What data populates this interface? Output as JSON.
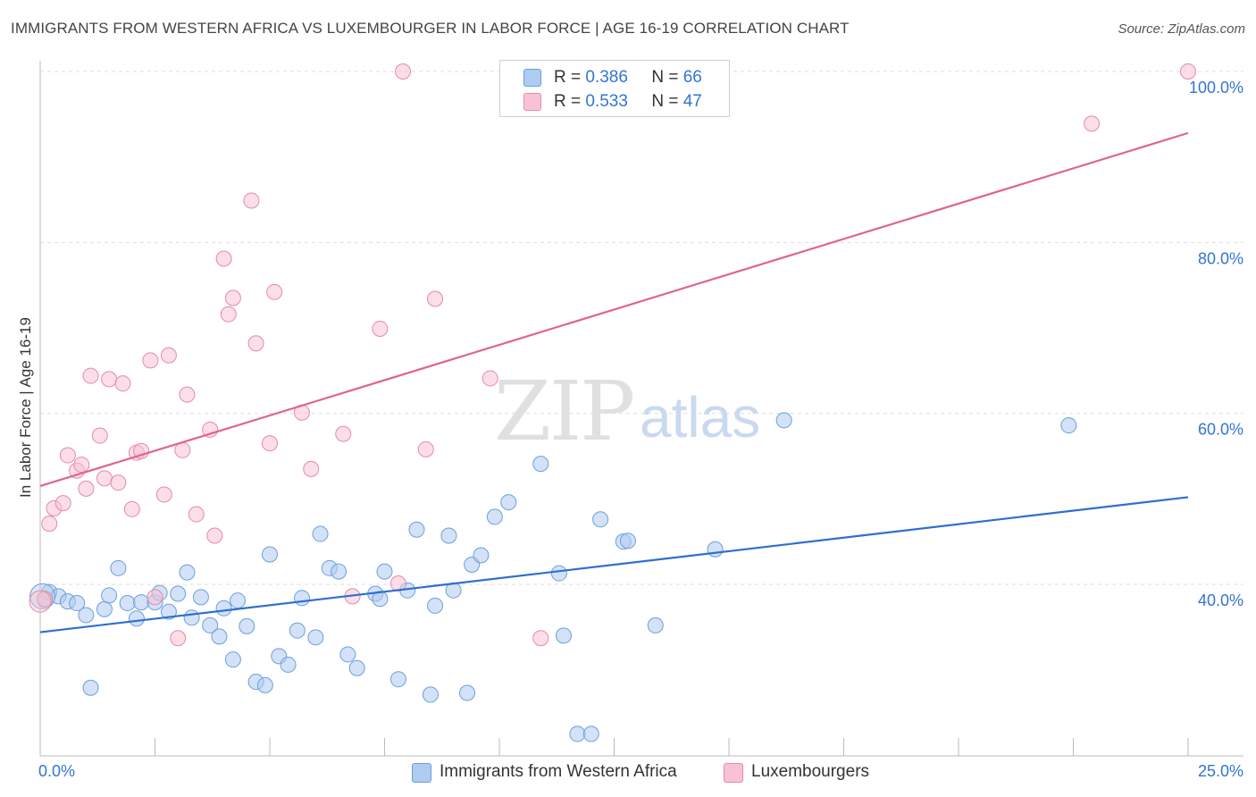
{
  "title": "IMMIGRANTS FROM WESTERN AFRICA VS LUXEMBOURGER IN LABOR FORCE | AGE 16-19 CORRELATION CHART",
  "source": "Source: ZipAtlas.com",
  "watermark": {
    "zip": "ZIP",
    "atlas": "atlas"
  },
  "legend": {
    "rows": [
      {
        "r_label": "R =",
        "r_value": "0.386",
        "n_label": "N =",
        "n_value": "66"
      },
      {
        "r_label": "R =",
        "r_value": "0.533",
        "n_label": "N =",
        "n_value": "47"
      }
    ]
  },
  "colors": {
    "blue_fill": "#aecbf0",
    "blue_stroke": "#6a9fdc",
    "blue_line": "#2e6fd0",
    "pink_fill": "#f7c3d3",
    "pink_stroke": "#e58aa8",
    "pink_line": "#e0648f",
    "axis_label": "#3474d1",
    "grid": "#dddddd"
  },
  "chart_data": {
    "type": "scatter",
    "title": "IMMIGRANTS FROM WESTERN AFRICA VS LUXEMBOURGER IN LABOR FORCE | AGE 16-19 CORRELATION CHART",
    "xlabel": "",
    "ylabel": "In Labor Force | Age 16-19",
    "xlim": [
      0,
      25
    ],
    "ylim": [
      20,
      101
    ],
    "x_tick_labels": [
      "0.0%",
      "25.0%"
    ],
    "y_ticks": [
      40,
      60,
      80,
      100
    ],
    "y_tick_labels": [
      "40.0%",
      "60.0%",
      "80.0%",
      "100.0%"
    ],
    "grid": true,
    "legend_position": "top-center",
    "series": [
      {
        "name": "Immigrants from Western Africa",
        "color": "#aecbf0",
        "trend": {
          "x": [
            0,
            25
          ],
          "y": [
            34.4,
            50.2
          ]
        },
        "points": [
          [
            0.1,
            38.2
          ],
          [
            0.2,
            39.1
          ],
          [
            0.4,
            38.6
          ],
          [
            0.6,
            38.0
          ],
          [
            0.8,
            37.8
          ],
          [
            1.0,
            36.4
          ],
          [
            1.1,
            27.9
          ],
          [
            1.4,
            37.1
          ],
          [
            1.5,
            38.7
          ],
          [
            1.7,
            41.9
          ],
          [
            1.9,
            37.8
          ],
          [
            2.1,
            36.0
          ],
          [
            2.2,
            37.9
          ],
          [
            2.5,
            37.9
          ],
          [
            2.6,
            39.0
          ],
          [
            2.8,
            36.8
          ],
          [
            3.0,
            38.9
          ],
          [
            3.2,
            41.4
          ],
          [
            3.3,
            36.1
          ],
          [
            3.5,
            38.5
          ],
          [
            3.7,
            35.2
          ],
          [
            3.9,
            33.9
          ],
          [
            4.0,
            37.2
          ],
          [
            4.2,
            31.2
          ],
          [
            4.3,
            38.1
          ],
          [
            4.5,
            35.1
          ],
          [
            4.7,
            28.6
          ],
          [
            4.9,
            28.2
          ],
          [
            5.0,
            43.5
          ],
          [
            5.2,
            31.6
          ],
          [
            5.4,
            30.6
          ],
          [
            5.6,
            34.6
          ],
          [
            5.7,
            38.4
          ],
          [
            6.0,
            33.8
          ],
          [
            6.1,
            45.9
          ],
          [
            6.3,
            41.9
          ],
          [
            6.5,
            41.5
          ],
          [
            6.7,
            31.8
          ],
          [
            6.9,
            30.2
          ],
          [
            7.3,
            38.9
          ],
          [
            7.4,
            38.3
          ],
          [
            7.5,
            41.5
          ],
          [
            7.8,
            28.9
          ],
          [
            8.0,
            39.3
          ],
          [
            8.2,
            46.4
          ],
          [
            8.5,
            27.1
          ],
          [
            8.6,
            37.5
          ],
          [
            8.9,
            45.7
          ],
          [
            9.0,
            39.3
          ],
          [
            9.3,
            27.3
          ],
          [
            9.4,
            42.3
          ],
          [
            9.6,
            43.4
          ],
          [
            9.9,
            47.9
          ],
          [
            10.2,
            49.6
          ],
          [
            10.9,
            54.1
          ],
          [
            11.3,
            41.3
          ],
          [
            11.4,
            34.0
          ],
          [
            11.7,
            22.5
          ],
          [
            12.0,
            22.5
          ],
          [
            12.2,
            47.6
          ],
          [
            12.7,
            45.0
          ],
          [
            12.8,
            45.1
          ],
          [
            13.4,
            35.2
          ],
          [
            14.7,
            44.1
          ],
          [
            16.2,
            59.2
          ],
          [
            22.4,
            58.6
          ]
        ]
      },
      {
        "name": "Luxembourgers",
        "color": "#f7c3d3",
        "trend": {
          "x": [
            0,
            25
          ],
          "y": [
            51.5,
            92.8
          ]
        },
        "points": [
          [
            0.1,
            38.3
          ],
          [
            0.2,
            47.1
          ],
          [
            0.3,
            48.9
          ],
          [
            0.5,
            49.5
          ],
          [
            0.6,
            55.1
          ],
          [
            0.8,
            53.3
          ],
          [
            0.9,
            54.0
          ],
          [
            1.0,
            51.2
          ],
          [
            1.1,
            64.4
          ],
          [
            1.3,
            57.4
          ],
          [
            1.4,
            52.4
          ],
          [
            1.5,
            64.0
          ],
          [
            1.7,
            51.9
          ],
          [
            1.8,
            63.5
          ],
          [
            2.0,
            48.8
          ],
          [
            2.1,
            55.4
          ],
          [
            2.2,
            55.6
          ],
          [
            2.4,
            66.2
          ],
          [
            2.5,
            38.5
          ],
          [
            2.7,
            50.5
          ],
          [
            2.8,
            66.8
          ],
          [
            3.0,
            33.7
          ],
          [
            3.1,
            55.7
          ],
          [
            3.2,
            62.2
          ],
          [
            3.4,
            48.2
          ],
          [
            3.7,
            58.1
          ],
          [
            3.8,
            45.7
          ],
          [
            4.0,
            78.1
          ],
          [
            4.1,
            71.6
          ],
          [
            4.2,
            73.5
          ],
          [
            4.6,
            84.9
          ],
          [
            4.7,
            68.2
          ],
          [
            5.0,
            56.5
          ],
          [
            5.1,
            74.2
          ],
          [
            5.7,
            60.1
          ],
          [
            5.9,
            53.5
          ],
          [
            6.6,
            57.6
          ],
          [
            6.8,
            38.6
          ],
          [
            7.4,
            69.9
          ],
          [
            7.8,
            40.1
          ],
          [
            7.9,
            100.0
          ],
          [
            8.4,
            55.8
          ],
          [
            8.6,
            73.4
          ],
          [
            9.8,
            64.1
          ],
          [
            10.9,
            33.7
          ],
          [
            22.9,
            93.9
          ],
          [
            25.0,
            100.0
          ]
        ]
      }
    ]
  }
}
